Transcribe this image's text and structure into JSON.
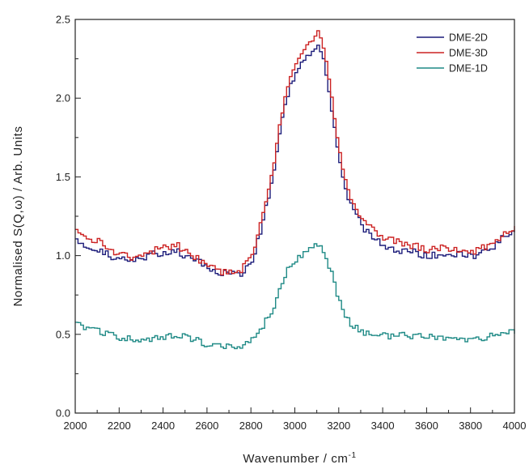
{
  "chart_data": {
    "type": "line",
    "title": "",
    "xlabel": "Wavenumber / cm",
    "xlabel_superscript": "-1",
    "ylabel": "Normalised S(Q,ω) / Arb. Units",
    "xlim": [
      2000,
      4000
    ],
    "ylim": [
      0.0,
      2.5
    ],
    "x_ticks": [
      "2000",
      "2200",
      "2400",
      "2600",
      "2800",
      "3000",
      "3200",
      "3400",
      "3600",
      "3800",
      "4000"
    ],
    "y_ticks": [
      "0.0",
      "0.5",
      "1.0",
      "1.5",
      "2.0",
      "2.5"
    ],
    "grid": false,
    "legend_position": "top-right",
    "step_style": true,
    "series": [
      {
        "name": "DME-2D",
        "color": "#1c1c7a",
        "x": [
          2000,
          2050,
          2100,
          2150,
          2200,
          2250,
          2300,
          2350,
          2400,
          2450,
          2500,
          2550,
          2600,
          2650,
          2700,
          2750,
          2800,
          2850,
          2900,
          2925,
          2950,
          2975,
          3000,
          3025,
          3050,
          3075,
          3100,
          3125,
          3150,
          3175,
          3200,
          3225,
          3250,
          3300,
          3350,
          3400,
          3450,
          3500,
          3550,
          3600,
          3650,
          3700,
          3750,
          3800,
          3850,
          3900,
          3950,
          4000
        ],
        "y": [
          1.1,
          1.06,
          1.03,
          1.0,
          0.97,
          0.97,
          0.99,
          1.01,
          1.02,
          1.03,
          1.0,
          0.97,
          0.91,
          0.89,
          0.88,
          0.89,
          0.97,
          1.22,
          1.55,
          1.78,
          1.95,
          2.08,
          2.16,
          2.22,
          2.27,
          2.3,
          2.34,
          2.26,
          2.05,
          1.8,
          1.58,
          1.42,
          1.32,
          1.19,
          1.11,
          1.07,
          1.04,
          1.03,
          1.02,
          0.99,
          1.01,
          1.0,
          1.01,
          0.99,
          1.02,
          1.06,
          1.12,
          1.16
        ]
      },
      {
        "name": "DME-3D",
        "color": "#cc2222",
        "x": [
          2000,
          2050,
          2100,
          2150,
          2200,
          2250,
          2300,
          2350,
          2400,
          2450,
          2500,
          2550,
          2600,
          2650,
          2700,
          2750,
          2800,
          2850,
          2900,
          2925,
          2950,
          2975,
          3000,
          3025,
          3050,
          3075,
          3100,
          3125,
          3150,
          3175,
          3200,
          3225,
          3250,
          3300,
          3350,
          3400,
          3450,
          3500,
          3550,
          3600,
          3650,
          3700,
          3750,
          3800,
          3850,
          3900,
          3950,
          4000
        ],
        "y": [
          1.15,
          1.12,
          1.09,
          1.04,
          1.01,
          0.99,
          1.01,
          1.03,
          1.05,
          1.07,
          1.03,
          0.98,
          0.93,
          0.9,
          0.89,
          0.91,
          1.0,
          1.26,
          1.6,
          1.83,
          2.0,
          2.13,
          2.22,
          2.28,
          2.33,
          2.37,
          2.42,
          2.33,
          2.12,
          1.87,
          1.64,
          1.47,
          1.37,
          1.24,
          1.16,
          1.12,
          1.09,
          1.07,
          1.06,
          1.04,
          1.05,
          1.03,
          1.04,
          1.02,
          1.05,
          1.09,
          1.14,
          1.19
        ]
      },
      {
        "name": "DME-1D",
        "color": "#1f8a86",
        "x": [
          2000,
          2050,
          2100,
          2150,
          2200,
          2250,
          2300,
          2350,
          2400,
          2450,
          2500,
          2550,
          2600,
          2650,
          2700,
          2750,
          2800,
          2850,
          2900,
          2925,
          2950,
          2975,
          3000,
          3025,
          3050,
          3075,
          3100,
          3125,
          3150,
          3175,
          3200,
          3225,
          3250,
          3300,
          3350,
          3400,
          3450,
          3500,
          3550,
          3600,
          3650,
          3700,
          3750,
          3800,
          3850,
          3900,
          3950,
          4000
        ],
        "y": [
          0.56,
          0.54,
          0.52,
          0.5,
          0.48,
          0.47,
          0.47,
          0.48,
          0.49,
          0.5,
          0.48,
          0.46,
          0.43,
          0.42,
          0.42,
          0.42,
          0.46,
          0.55,
          0.68,
          0.78,
          0.87,
          0.94,
          0.98,
          1.01,
          1.04,
          1.06,
          1.07,
          1.03,
          0.94,
          0.82,
          0.7,
          0.61,
          0.56,
          0.52,
          0.5,
          0.49,
          0.49,
          0.49,
          0.49,
          0.48,
          0.48,
          0.47,
          0.47,
          0.47,
          0.48,
          0.49,
          0.51,
          0.52
        ]
      }
    ]
  }
}
